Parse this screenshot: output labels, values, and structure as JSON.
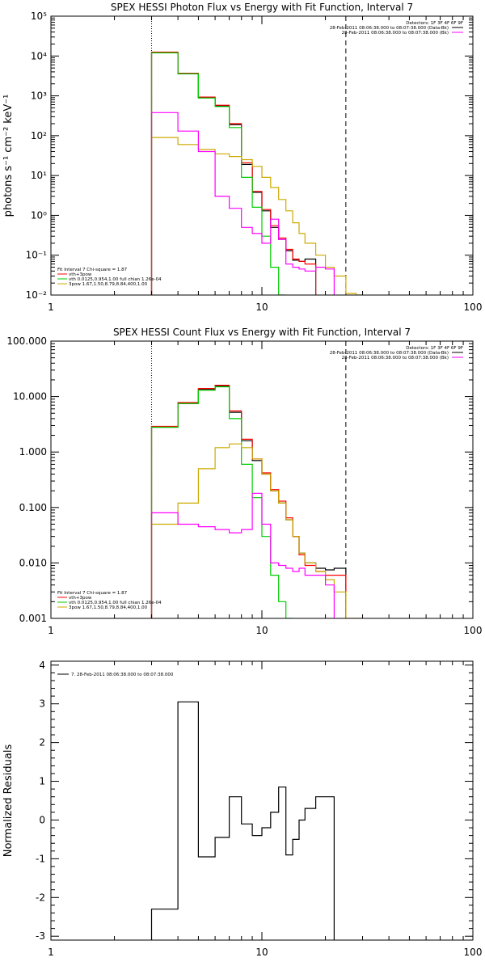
{
  "chart_data": [
    {
      "type": "line",
      "title": "SPEX HESSI Photon Flux vs Energy with Fit Function, Interval 7",
      "ylabel": "photons s⁻¹ cm⁻² keV⁻¹",
      "xscale": "log",
      "yscale": "log",
      "xlim": [
        1,
        100
      ],
      "ylim": [
        0.01,
        100000
      ],
      "x_ticks": [
        "1",
        "10",
        "100"
      ],
      "y_ticks": [
        "10⁻²",
        "10⁻¹",
        "10⁰",
        "10¹",
        "10²",
        "10³",
        "10⁴",
        "10⁵"
      ],
      "annotation_right": [
        "Detectors: 1F 3F 4F 6F 9F",
        "28-Feb-2011 08:06:38.000 to 08:07:38.000 (Data-Bk)",
        "28-Feb-2011 08:06:38.000 to 08:07:38.000 (Bk)"
      ],
      "annotation_left": [
        "Fit Interval  7    Chi-square = 1.87",
        "vth+3pow",
        "vth 0.0125,0.954,1.00  full chian 1.26e-04",
        "3pow 1.67,1.50,8.79,8.84,400,1.00"
      ],
      "vlines": [
        3,
        25
      ],
      "bin_edges": [
        3,
        4,
        5,
        6,
        7,
        8,
        9,
        10,
        11,
        12,
        13,
        14,
        15,
        16,
        18,
        20,
        22,
        25,
        28,
        30
      ],
      "series": [
        {
          "name": "data-bk",
          "color": "#000000",
          "values": [
            12000,
            3600,
            900,
            560,
            190,
            19,
            3.8,
            1.3,
            0.5,
            0.25,
            0.13,
            0.075,
            0.07,
            0.08,
            null,
            null,
            null,
            null,
            null
          ]
        },
        {
          "name": "vth+3pow",
          "color": "#ff0000",
          "values": [
            12500,
            3700,
            930,
            580,
            200,
            21,
            4.0,
            1.4,
            0.55,
            0.27,
            0.14,
            0.08,
            0.07,
            0.06,
            null,
            null,
            null,
            null,
            null
          ]
        },
        {
          "name": "vth",
          "color": "#00cc00",
          "values": [
            12000,
            3600,
            880,
            540,
            160,
            9,
            1.6,
            0.3,
            0.05,
            0.005,
            null,
            null,
            null,
            null,
            null,
            null,
            null,
            null,
            null
          ]
        },
        {
          "name": "3pow",
          "color": "#ccaa00",
          "values": [
            90,
            60,
            45,
            35,
            30,
            25,
            17,
            9,
            5,
            2.5,
            1.3,
            0.65,
            0.35,
            0.2,
            0.1,
            0.05,
            0.03,
            0.011,
            0.008
          ]
        },
        {
          "name": "bk",
          "color": "#ff00ff",
          "values": [
            380,
            130,
            40,
            3,
            1.5,
            0.5,
            0.35,
            0.2,
            0.8,
            0.25,
            0.06,
            0.05,
            0.045,
            0.04,
            0.05,
            0.045,
            null,
            null,
            null
          ]
        }
      ]
    },
    {
      "type": "line",
      "title": "SPEX HESSI Count Flux vs Energy with Fit Function, Interval 7",
      "ylabel": "",
      "xscale": "log",
      "yscale": "log",
      "xlim": [
        1,
        100
      ],
      "ylim": [
        0.001,
        100
      ],
      "x_ticks": [
        "1",
        "10",
        "100"
      ],
      "y_ticks": [
        "0.001",
        "0.010",
        "0.100",
        "1.000",
        "10.000",
        "100.000"
      ],
      "annotation_right": [
        "Detectors: 1F 3F 4F 6F 9F",
        "28-Feb-2011 08:06:38.000 to 08:07:38.000 (Data-Bk)",
        "28-Feb-2011 08:06:38.000 to 08:07:38.000 (Bk)"
      ],
      "annotation_left": [
        "Fit Interval  7    Chi-square = 1.87",
        "vth+3pow",
        "vth 0.0125,0.954,1.00  full chian 1.26e-04",
        "3pow 1.67,1.50,8.79,8.84,400,1.00"
      ],
      "vlines": [
        3,
        25
      ],
      "bin_edges": [
        3,
        4,
        5,
        6,
        7,
        8,
        9,
        10,
        11,
        12,
        13,
        14,
        15,
        16,
        18,
        20,
        22,
        25,
        28,
        30
      ],
      "series": [
        {
          "name": "data-bk",
          "color": "#000000",
          "values": [
            2.8,
            7.5,
            13.5,
            15.5,
            5.2,
            1.6,
            0.7,
            0.4,
            0.2,
            0.12,
            0.06,
            0.03,
            0.015,
            0.01,
            0.008,
            0.0075,
            0.008,
            null,
            null
          ]
        },
        {
          "name": "vth+3pow",
          "color": "#ff0000",
          "values": [
            2.9,
            7.8,
            14,
            16,
            5.5,
            1.7,
            0.75,
            0.42,
            0.21,
            0.13,
            0.065,
            0.03,
            0.014,
            0.009,
            0.007,
            0.006,
            0.006,
            null,
            null
          ]
        },
        {
          "name": "vth",
          "color": "#00cc00",
          "values": [
            2.8,
            7.5,
            13,
            15,
            4,
            0.6,
            0.15,
            0.03,
            0.006,
            0.002,
            0.0005,
            null,
            null,
            null,
            null,
            null,
            null,
            null,
            null
          ]
        },
        {
          "name": "3pow",
          "color": "#ccaa00",
          "values": [
            0.05,
            0.12,
            0.5,
            1.2,
            1.4,
            1.2,
            0.75,
            0.4,
            0.2,
            0.12,
            0.06,
            0.03,
            0.015,
            0.01,
            0.007,
            0.005,
            0.003,
            0.0009,
            0.0006
          ]
        },
        {
          "name": "bk",
          "color": "#ff00ff",
          "values": [
            0.08,
            0.05,
            0.045,
            0.04,
            0.035,
            0.04,
            0.18,
            0.05,
            0.01,
            0.009,
            0.008,
            0.007,
            0.008,
            0.006,
            0.006,
            0.004,
            null,
            null,
            null
          ]
        }
      ]
    },
    {
      "type": "line",
      "title": "",
      "ylabel": "Normalized Residuals",
      "xscale": "log",
      "yscale": "linear",
      "xlim": [
        1,
        100
      ],
      "ylim": [
        -3.1,
        4.1
      ],
      "x_ticks": [
        "1",
        "10",
        "100"
      ],
      "y_ticks": [
        "-3",
        "-2",
        "-1",
        "0",
        "1",
        "2",
        "3",
        "4"
      ],
      "legend": "7. 28-Feb-2011 08:06:38.000 to 08:07:38.000",
      "bin_edges": [
        3,
        4,
        5,
        6,
        7,
        8,
        9,
        10,
        11,
        12,
        13,
        14,
        15,
        16,
        18,
        20,
        22,
        25
      ],
      "series": [
        {
          "name": "7. 28-Feb-2011 08:06:38.000 to 08:07:38.000",
          "color": "#000000",
          "values": [
            -2.3,
            3.05,
            -0.95,
            -0.45,
            0.6,
            -0.1,
            -0.4,
            -0.2,
            0.2,
            0.85,
            -0.9,
            -0.5,
            0.0,
            0.3,
            0.6,
            0.6,
            null
          ]
        }
      ]
    }
  ]
}
